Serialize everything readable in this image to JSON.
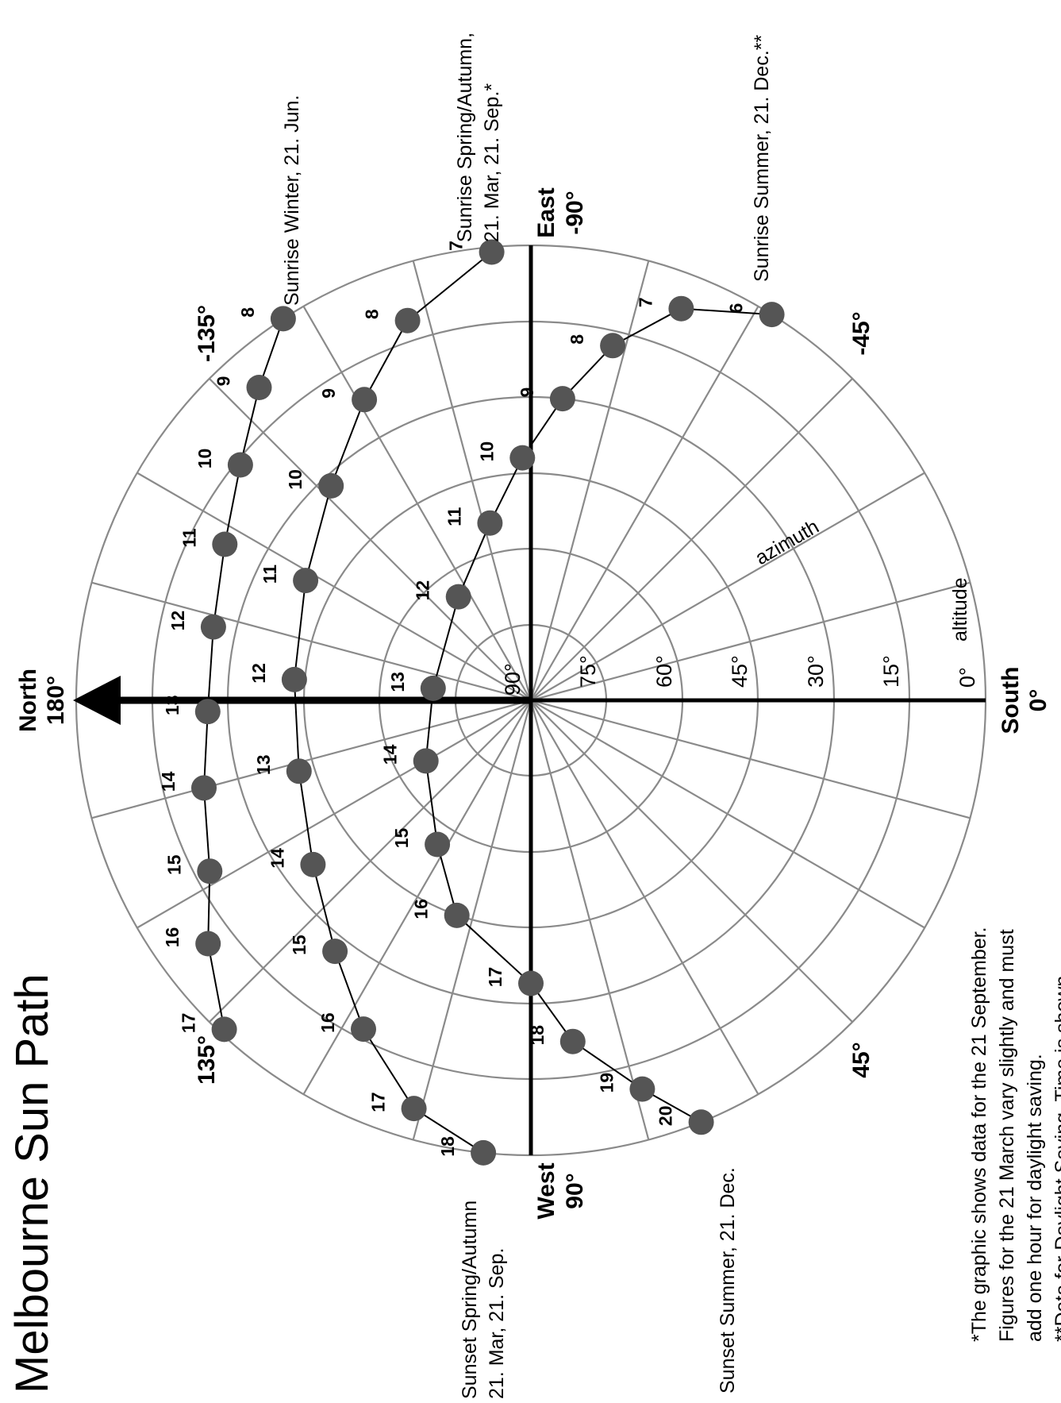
{
  "title": "Melbourne Sun Path",
  "compass": {
    "north": {
      "name": "North",
      "deg": "180°"
    },
    "south": {
      "name": "South",
      "deg": "0°"
    },
    "east": {
      "name": "East",
      "deg": "-90°"
    },
    "west": {
      "name": "West",
      "deg": "90°"
    },
    "ne": "-135°",
    "se": "-45°",
    "nw": "135°",
    "sw": "45°"
  },
  "axis_words": {
    "azimuth": "azimuth",
    "altitude": "altitude"
  },
  "altitude_rings": [
    "0°",
    "15°",
    "30°",
    "45°",
    "60°",
    "75°",
    "90°"
  ],
  "labels": {
    "sunrise_winter": "Sunrise Winter, 21. Jun.",
    "sunrise_spring_1": "Sunrise Spring/Autumn,",
    "sunrise_spring_2": "21. Mar, 21. Sep.*",
    "sunrise_summer": "Sunrise Summer, 21. Dec.**",
    "sunset_spring_1": "Sunset Spring/Autumn",
    "sunset_spring_2": "21. Mar, 21. Sep.",
    "sunset_summer": "Sunset Summer, 21. Dec."
  },
  "notes": [
    "*The graphic shows data for the 21 September.",
    "Figures for the 21 March vary slightly and must",
    "add one hour for daylight saving.",
    "**Data for Daylight Saving. Time is shown"
  ],
  "colors": {
    "sun_marker": "#555555",
    "grid": "#8a8a8a",
    "axis": "#000000"
  },
  "chart_data": {
    "type": "polar-sun-path",
    "azimuth_spoke_interval_deg": 15,
    "altitude_ring_interval_deg": 15,
    "series": [
      {
        "name": "Winter, 21. Jun.",
        "points": [
          {
            "hour": "8",
            "azimuth": -123,
            "altitude": 0
          },
          {
            "hour": "9",
            "azimuth": -131,
            "altitude": 8
          },
          {
            "hour": "10",
            "azimuth": -141,
            "altitude": 16
          },
          {
            "hour": "11",
            "azimuth": -153,
            "altitude": 22
          },
          {
            "hour": "12",
            "azimuth": -167,
            "altitude": 25.5
          },
          {
            "hour": "13",
            "azimuth": 178,
            "altitude": 26
          },
          {
            "hour": "14",
            "azimuth": 165,
            "altitude": 23
          },
          {
            "hour": "15",
            "azimuth": 152,
            "altitude": 18
          },
          {
            "hour": "16",
            "azimuth": 143,
            "altitude": 10
          },
          {
            "hour": "17",
            "azimuth": 133,
            "altitude": 1
          }
        ]
      },
      {
        "name": "Spring/Autumn, 21. Mar, 21. Sep.",
        "points": [
          {
            "hour": "7",
            "azimuth": -95,
            "altitude": 1
          },
          {
            "hour": "8",
            "azimuth": -108,
            "altitude": 11
          },
          {
            "hour": "9",
            "azimuth": -119,
            "altitude": 22
          },
          {
            "hour": "10",
            "azimuth": -133,
            "altitude": 32
          },
          {
            "hour": "11",
            "azimuth": -152,
            "altitude": 39.5
          },
          {
            "hour": "12",
            "azimuth": -175,
            "altitude": 43
          },
          {
            "hour": "13",
            "azimuth": 163,
            "altitude": 42
          },
          {
            "hour": "14",
            "azimuth": 143,
            "altitude": 36
          },
          {
            "hour": "15",
            "azimuth": 128,
            "altitude": 27
          },
          {
            "hour": "16",
            "azimuth": 117,
            "altitude": 17
          },
          {
            "hour": "17",
            "azimuth": 106,
            "altitude": 6
          },
          {
            "hour": "18",
            "azimuth": 96,
            "altitude": 0
          }
        ]
      },
      {
        "name": "Summer, 21. Dec.",
        "points": [
          {
            "hour": "6",
            "azimuth": -58,
            "altitude": 0
          },
          {
            "hour": "7",
            "azimuth": -69,
            "altitude": 7
          },
          {
            "hour": "8",
            "azimuth": -77,
            "altitude": 18
          },
          {
            "hour": "9",
            "azimuth": -84,
            "altitude": 30
          },
          {
            "hour": "10",
            "azimuth": -92,
            "altitude": 42
          },
          {
            "hour": "11",
            "azimuth": -103,
            "altitude": 54
          },
          {
            "hour": "12",
            "azimuth": -125,
            "altitude": 65
          },
          {
            "hour": "13",
            "azimuth": -173,
            "altitude": 70.5
          },
          {
            "hour": "14",
            "azimuth": 150,
            "altitude": 66
          },
          {
            "hour": "15",
            "azimuth": 123,
            "altitude": 56
          },
          {
            "hour": "16",
            "azimuth": 109,
            "altitude": 45
          },
          {
            "hour": "17",
            "azimuth": 90,
            "altitude": 34
          },
          {
            "hour": "18",
            "azimuth": 83,
            "altitude": 22
          },
          {
            "hour": "19",
            "azimuth": 74,
            "altitude": 10
          },
          {
            "hour": "20",
            "azimuth": 68,
            "altitude": 0
          }
        ]
      }
    ]
  }
}
